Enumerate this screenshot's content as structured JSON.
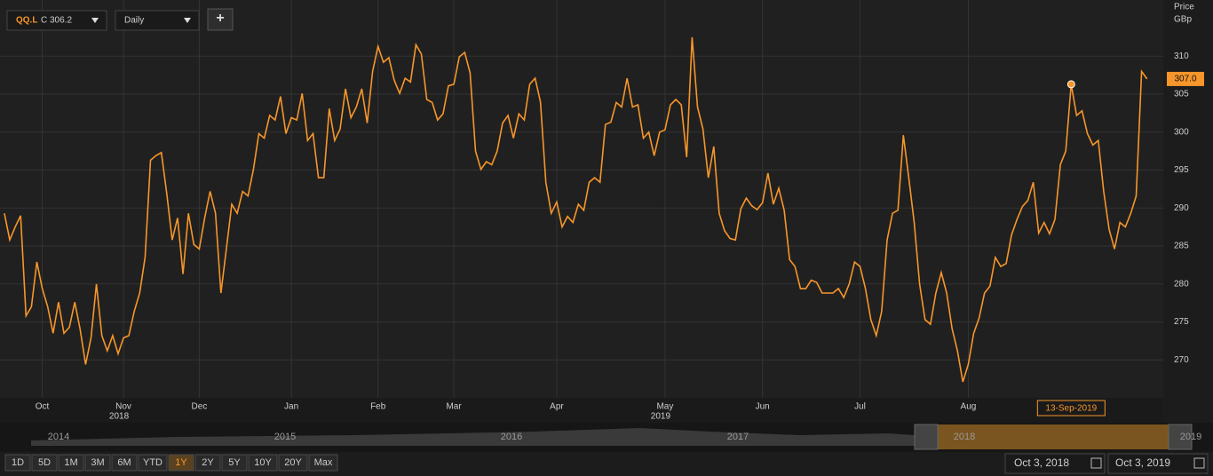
{
  "chart_data": {
    "type": "line",
    "symbol": "QQ.L",
    "close_text": "C 306.2",
    "interval": "Daily",
    "add_button": "+",
    "y_axis_title": "Price",
    "y_axis_unit": "GBp",
    "series": [
      {
        "name": "QQ.L",
        "color": "#f7962a",
        "values": [
          289.3,
          285.8,
          287.5,
          289,
          275.8,
          277,
          282.9,
          279.4,
          277,
          273.5,
          277.6,
          273.5,
          274.3,
          277.6,
          274,
          269.4,
          272.9,
          280,
          273.2,
          271.2,
          273.2,
          270.8,
          272.9,
          273.2,
          276.4,
          278.8,
          283.5,
          296.3,
          296.9,
          297.3,
          291.9,
          285.8,
          288.7,
          281.3,
          289.3,
          285.2,
          284.6,
          288.7,
          292.2,
          289.3,
          278.8,
          284.6,
          290.5,
          289.3,
          292.2,
          291.6,
          295.1,
          299.8,
          299.2,
          302.2,
          301.6,
          304.7,
          299.8,
          301.9,
          301.6,
          305.1,
          298.9,
          299.8,
          294,
          294,
          303.1,
          298.9,
          300.4,
          305.7,
          301.9,
          303.3,
          305.7,
          301.2,
          308,
          311.3,
          309.2,
          309.8,
          306.8,
          305.1,
          307.1,
          306.6,
          311.5,
          310.3,
          304.3,
          303.9,
          301.6,
          302.4,
          306.1,
          306.3,
          309.9,
          310.5,
          307.8,
          297.5,
          295.1,
          296.1,
          295.7,
          297.5,
          301.2,
          302.2,
          299.2,
          302.4,
          301.6,
          306.3,
          307.1,
          304,
          293.4,
          289.3,
          290.8,
          287.5,
          288.9,
          288.1,
          290.5,
          289.7,
          293.4,
          294,
          293.4,
          301,
          301.3,
          303.9,
          303.3,
          307.1,
          303.3,
          303.6,
          299.2,
          300,
          296.9,
          300,
          300.3,
          303.6,
          304.3,
          303.6,
          296.7,
          312.5,
          303.3,
          300.4,
          294,
          298.1,
          289.3,
          287,
          286,
          285.8,
          289.9,
          291.3,
          290.3,
          289.8,
          290.7,
          294.6,
          290.5,
          292.6,
          289.7,
          283.2,
          282.3,
          279.4,
          279.4,
          280.5,
          280.2,
          278.8,
          278.8,
          278.8,
          279.4,
          278.2,
          280,
          282.9,
          282.3,
          279.4,
          275.3,
          273.2,
          276.4,
          285.8,
          289.3,
          289.7,
          299.6,
          294,
          288.1,
          280,
          275.3,
          274.7,
          278.8,
          281.5,
          278.8,
          274.1,
          271.2,
          267.1,
          269.4,
          273.5,
          275.5,
          278.8,
          279.7,
          283.5,
          282.3,
          282.7,
          286.5,
          288.5,
          290.2,
          291,
          293.4,
          286.7,
          288.1,
          286.6,
          288.5,
          295.7,
          297.5,
          306.3,
          302.2,
          302.8,
          299.8,
          298.3,
          298.9,
          292.2,
          287.2,
          284.6,
          288.1,
          287.5,
          289.3,
          291.6,
          308,
          307
        ]
      }
    ],
    "last_price": {
      "value": 307,
      "label": "307.0"
    },
    "marker": {
      "x": 197,
      "label": "13-Sep-2019"
    },
    "xlim": [
      -0.8,
      214
    ],
    "xticks": [
      {
        "value": 7,
        "label": "Oct"
      },
      {
        "value": 22,
        "label": "Nov"
      },
      {
        "value": 36,
        "label": "Dec"
      },
      {
        "value": 53,
        "label": "Jan"
      },
      {
        "value": 69,
        "label": "Feb"
      },
      {
        "value": 83,
        "label": "Mar"
      },
      {
        "value": 102,
        "label": "Apr"
      },
      {
        "value": 122,
        "label": "May"
      },
      {
        "value": 140,
        "label": "Jun"
      },
      {
        "value": 158,
        "label": "Jul"
      },
      {
        "value": 178,
        "label": "Aug"
      }
    ],
    "year_labels": [
      {
        "value": 22,
        "label": "2018"
      },
      {
        "value": 122,
        "label": "2019"
      }
    ],
    "ylim": [
      265,
      317.4
    ],
    "yticks": [
      270,
      275,
      280,
      285,
      290,
      295,
      300,
      305,
      310
    ],
    "grid": true,
    "navigator_years": [
      "2014",
      "2015",
      "2016",
      "2017",
      "2018",
      "2019"
    ],
    "ranges": [
      "1D",
      "5D",
      "1M",
      "3M",
      "6M",
      "YTD",
      "1Y",
      "2Y",
      "5Y",
      "10Y",
      "20Y",
      "Max"
    ],
    "active_range": "1Y",
    "date_from": "Oct 3, 2018",
    "date_to": "Oct 3, 2019"
  }
}
